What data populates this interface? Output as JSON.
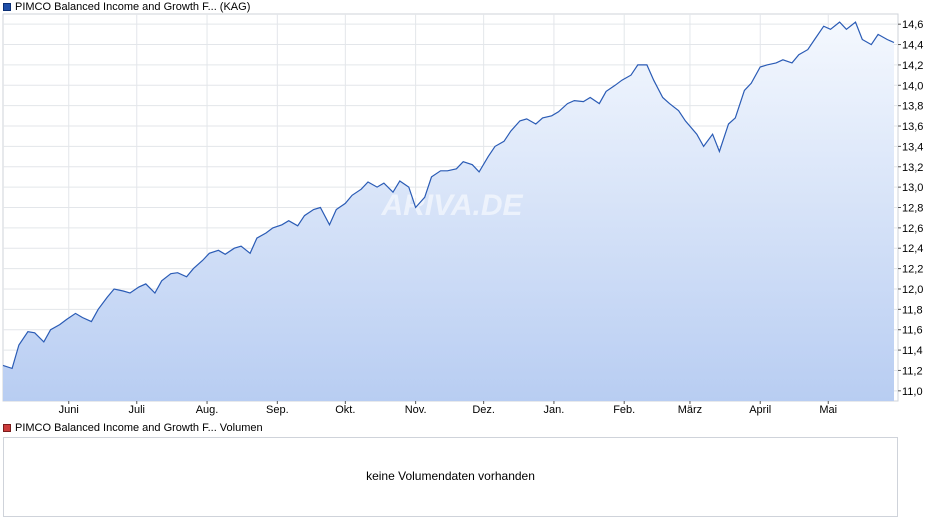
{
  "legend_price": {
    "label": "PIMCO Balanced Income and Growth F... (KAG)",
    "color": "#1f4fa8"
  },
  "legend_volume": {
    "label": "PIMCO Balanced Income and Growth F... Volumen",
    "color": "#cc3b3b"
  },
  "watermark": "ARIVA.DE",
  "volume_message": "keine Volumendaten vorhanden",
  "chart_data": {
    "type": "area",
    "title": "",
    "xlabel": "",
    "ylabel": "",
    "ylim": [
      10.9,
      14.7
    ],
    "y_ticks": [
      "11,0",
      "11,2",
      "11,4",
      "11,6",
      "11,8",
      "12,0",
      "12,2",
      "12,4",
      "12,6",
      "12,8",
      "13,0",
      "13,2",
      "13,4",
      "13,6",
      "13,8",
      "14,0",
      "14,2",
      "14,4",
      "14,6"
    ],
    "x_ticks": [
      "Juni",
      "Juli",
      "Aug.",
      "Sep.",
      "Okt.",
      "Nov.",
      "Dez.",
      "Jan.",
      "Feb.",
      "März",
      "April",
      "Mai"
    ],
    "grid": true,
    "line_color": "#2a5bb5",
    "fill_top_color": "#f4f8fe",
    "fill_bottom_color": "#b8cdf2",
    "series": [
      {
        "x": [
          "05-03",
          "05-07",
          "05-10",
          "05-14",
          "05-17",
          "05-21",
          "05-24",
          "05-28",
          "05-31",
          "06-04",
          "06-07",
          "06-11",
          "06-14",
          "06-18",
          "06-21",
          "06-25",
          "06-28",
          "07-02",
          "07-05",
          "07-09",
          "07-12",
          "07-16",
          "07-19",
          "07-23",
          "07-26",
          "07-30",
          "08-02",
          "08-06",
          "08-09",
          "08-13",
          "08-16",
          "08-20",
          "08-23",
          "08-27",
          "08-30",
          "09-03",
          "09-06",
          "09-10",
          "09-13",
          "09-17",
          "09-20",
          "09-24",
          "09-27",
          "10-01",
          "10-04",
          "10-08",
          "10-11",
          "10-15",
          "10-18",
          "10-22",
          "10-25",
          "10-29",
          "11-01",
          "11-05",
          "11-08",
          "11-12",
          "11-15",
          "11-19",
          "11-22",
          "11-26",
          "11-29",
          "12-03",
          "12-06",
          "12-10",
          "12-13",
          "12-17",
          "12-20",
          "12-24",
          "12-27",
          "12-31",
          "01-03",
          "01-07",
          "01-10",
          "01-14",
          "01-17",
          "01-21",
          "01-24",
          "01-28",
          "01-31",
          "02-04",
          "02-07",
          "02-11",
          "02-14",
          "02-18",
          "02-21",
          "02-25",
          "02-28",
          "03-04",
          "03-07",
          "03-11",
          "03-14",
          "03-18",
          "03-21",
          "03-25",
          "03-28",
          "04-01",
          "04-04",
          "04-08",
          "04-11",
          "04-15",
          "04-18",
          "04-22",
          "04-25",
          "04-29",
          "05-02",
          "05-06",
          "05-09",
          "05-13",
          "05-16",
          "05-20",
          "05-23",
          "05-27",
          "05-30"
        ],
        "values": [
          11.25,
          11.22,
          11.45,
          11.58,
          11.57,
          11.48,
          11.6,
          11.65,
          11.7,
          11.76,
          11.72,
          11.68,
          11.8,
          11.92,
          12.0,
          11.98,
          11.96,
          12.02,
          12.05,
          11.96,
          12.08,
          12.15,
          12.16,
          12.12,
          12.2,
          12.28,
          12.35,
          12.38,
          12.34,
          12.4,
          12.42,
          12.35,
          12.5,
          12.55,
          12.6,
          12.63,
          12.67,
          12.62,
          12.72,
          12.78,
          12.8,
          12.63,
          12.78,
          12.84,
          12.92,
          12.98,
          13.05,
          13.0,
          13.04,
          12.95,
          13.06,
          13.0,
          12.8,
          12.9,
          13.1,
          13.16,
          13.16,
          13.18,
          13.25,
          13.22,
          13.15,
          13.3,
          13.4,
          13.45,
          13.55,
          13.65,
          13.67,
          13.62,
          13.68,
          13.7,
          13.74,
          13.82,
          13.85,
          13.84,
          13.88,
          13.82,
          13.94,
          14.0,
          14.05,
          14.1,
          14.2,
          14.2,
          14.05,
          13.88,
          13.82,
          13.75,
          13.65,
          13.52,
          13.4,
          13.52,
          13.35,
          13.62,
          13.68,
          13.95,
          14.02,
          14.18,
          14.2,
          14.22,
          14.25,
          14.22,
          14.3,
          14.35,
          14.45,
          14.58,
          14.55,
          14.62,
          14.55,
          14.62,
          14.45,
          14.4,
          14.5,
          14.45,
          14.42
        ]
      }
    ]
  }
}
